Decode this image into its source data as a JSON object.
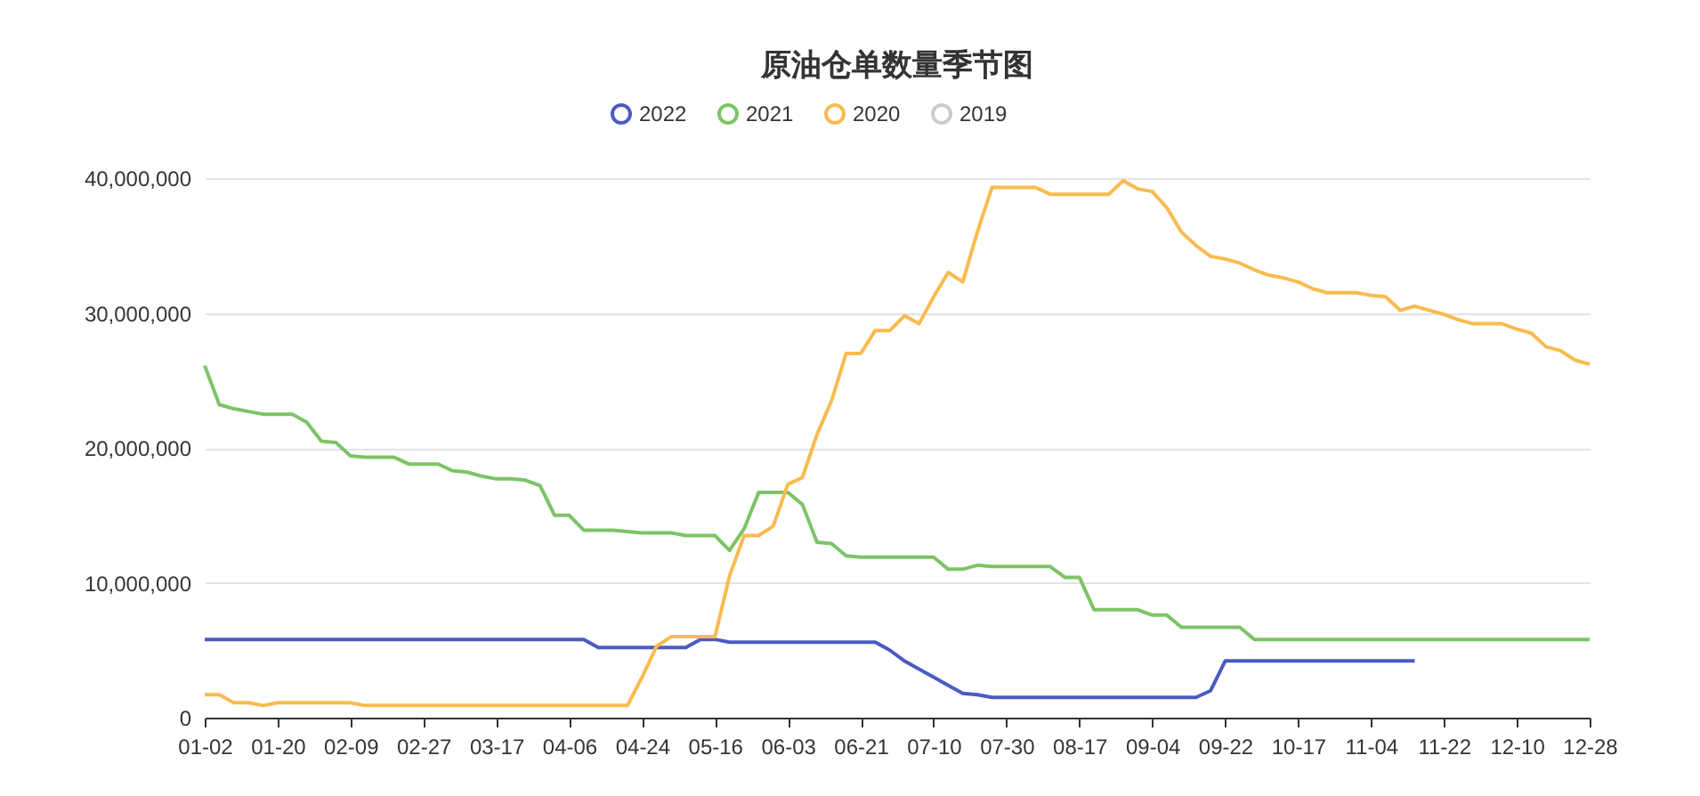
{
  "chart_data": {
    "type": "line",
    "title": "原油仓单数量季节图",
    "categories": [
      "01-02",
      null,
      null,
      null,
      null,
      "01-20",
      null,
      null,
      null,
      null,
      "02-09",
      null,
      null,
      null,
      null,
      "02-27",
      null,
      null,
      null,
      null,
      "03-17",
      null,
      null,
      null,
      null,
      "04-06",
      null,
      null,
      null,
      null,
      "04-24",
      null,
      null,
      null,
      null,
      "05-16",
      null,
      null,
      null,
      null,
      "06-03",
      null,
      null,
      null,
      null,
      "06-21",
      null,
      null,
      null,
      null,
      "07-10",
      null,
      null,
      null,
      null,
      "07-30",
      null,
      null,
      null,
      null,
      "08-17",
      null,
      null,
      null,
      null,
      "09-04",
      null,
      null,
      null,
      null,
      "09-22",
      null,
      null,
      null,
      null,
      "10-17",
      null,
      null,
      null,
      null,
      "11-04",
      null,
      null,
      null,
      null,
      "11-22",
      null,
      null,
      null,
      null,
      "12-10",
      null,
      null,
      null,
      null,
      "12-28"
    ],
    "series": [
      {
        "name": "2022",
        "color": "#4a5bc4",
        "values": [
          5800000,
          5800000,
          5800000,
          5800000,
          5800000,
          5800000,
          5800000,
          5800000,
          5800000,
          5800000,
          5800000,
          5800000,
          5800000,
          5800000,
          5800000,
          5800000,
          5800000,
          5800000,
          5800000,
          5800000,
          5800000,
          5800000,
          5800000,
          5800000,
          5800000,
          5800000,
          5800000,
          5200000,
          5200000,
          5200000,
          5200000,
          5200000,
          5200000,
          5200000,
          5800000,
          5800000,
          5600000,
          5600000,
          5600000,
          5600000,
          5600000,
          5600000,
          5600000,
          5600000,
          5600000,
          5600000,
          5600000,
          5000000,
          4200000,
          3600000,
          3000000,
          2400000,
          1800000,
          1700000,
          1500000,
          1500000,
          1500000,
          1500000,
          1500000,
          1500000,
          1500000,
          1500000,
          1500000,
          1500000,
          1500000,
          1500000,
          1500000,
          1500000,
          1500000,
          2000000,
          4200000,
          4200000,
          4200000,
          4200000,
          4200000,
          4200000,
          4200000,
          4200000,
          4200000,
          4200000,
          4200000,
          4200000,
          4200000,
          4200000,
          null,
          null,
          null,
          null,
          null,
          null,
          null,
          null,
          null,
          null,
          null,
          null
        ]
      },
      {
        "name": "2021",
        "color": "#7cc466",
        "values": [
          26100000,
          23200000,
          22900000,
          22700000,
          22500000,
          22500000,
          22500000,
          21900000,
          20500000,
          20400000,
          19400000,
          19300000,
          19300000,
          19300000,
          18800000,
          18800000,
          18800000,
          18300000,
          18200000,
          17900000,
          17700000,
          17700000,
          17600000,
          17200000,
          15000000,
          15000000,
          13900000,
          13900000,
          13900000,
          13800000,
          13700000,
          13700000,
          13700000,
          13500000,
          13500000,
          13500000,
          12400000,
          14000000,
          16700000,
          16700000,
          16700000,
          15800000,
          13000000,
          12900000,
          12000000,
          11900000,
          11900000,
          11900000,
          11900000,
          11900000,
          11900000,
          11000000,
          11000000,
          11300000,
          11200000,
          11200000,
          11200000,
          11200000,
          11200000,
          10400000,
          10400000,
          8000000,
          8000000,
          8000000,
          8000000,
          7600000,
          7600000,
          6700000,
          6700000,
          6700000,
          6700000,
          6700000,
          5800000,
          5800000,
          5800000,
          5800000,
          5800000,
          5800000,
          5800000,
          5800000,
          5800000,
          5800000,
          5800000,
          5800000,
          5800000,
          5800000,
          5800000,
          5800000,
          5800000,
          5800000,
          5800000,
          5800000,
          5800000,
          5800000,
          5800000,
          5800000
        ]
      },
      {
        "name": "2020",
        "color": "#f9bb4f",
        "values": [
          1700000,
          1700000,
          1100000,
          1100000,
          900000,
          1100000,
          1100000,
          1100000,
          1100000,
          1100000,
          1100000,
          900000,
          900000,
          900000,
          900000,
          900000,
          900000,
          900000,
          900000,
          900000,
          900000,
          900000,
          900000,
          900000,
          900000,
          900000,
          900000,
          900000,
          900000,
          900000,
          3000000,
          5300000,
          6000000,
          6000000,
          6000000,
          6000000,
          10500000,
          13500000,
          13500000,
          14200000,
          17300000,
          17800000,
          21000000,
          23500000,
          27000000,
          27000000,
          28700000,
          28700000,
          29800000,
          29200000,
          31200000,
          33000000,
          32300000,
          36000000,
          39300000,
          39300000,
          39300000,
          39300000,
          38800000,
          38800000,
          38800000,
          38800000,
          38800000,
          39800000,
          39200000,
          39000000,
          37800000,
          36000000,
          35000000,
          34200000,
          34000000,
          33700000,
          33200000,
          32800000,
          32600000,
          32300000,
          31800000,
          31500000,
          31500000,
          31500000,
          31300000,
          31200000,
          30200000,
          30500000,
          30200000,
          29900000,
          29500000,
          29200000,
          29200000,
          29200000,
          28800000,
          28500000,
          27500000,
          27200000,
          26500000,
          26200000
        ]
      },
      {
        "name": "2019",
        "color": "#cccccc",
        "values": [
          null,
          null,
          null,
          null,
          null,
          null,
          null,
          null,
          null,
          null,
          null,
          null,
          null,
          null,
          null,
          null,
          null,
          null,
          null,
          null,
          null,
          null,
          null,
          null,
          null,
          null,
          null,
          null,
          null,
          null,
          null,
          null,
          null,
          null,
          null,
          null,
          null,
          null,
          null,
          null,
          null,
          null,
          null,
          null,
          null,
          null,
          null,
          null,
          null,
          null,
          null,
          null,
          null,
          null,
          null,
          null,
          null,
          null,
          null,
          null,
          null,
          null,
          null,
          null,
          null,
          null,
          null,
          null,
          null,
          null,
          null,
          null,
          null,
          null,
          null,
          null,
          null,
          null,
          null,
          null,
          null,
          null,
          null,
          null,
          null,
          null,
          null,
          null,
          null,
          null,
          null,
          null,
          null,
          null,
          null,
          null
        ]
      }
    ],
    "ylim": [
      0,
      40000000
    ],
    "yticks": [
      0,
      {
        "value": 10000000,
        "label": "10,000,000"
      },
      {
        "value": 20000000,
        "label": "20,000,000"
      },
      {
        "value": 30000000,
        "label": "30,000,000"
      },
      {
        "value": 40000000,
        "label": "40,000,000"
      }
    ],
    "grid": "y",
    "legend": "top",
    "marker": "none",
    "line_style": "solid"
  }
}
